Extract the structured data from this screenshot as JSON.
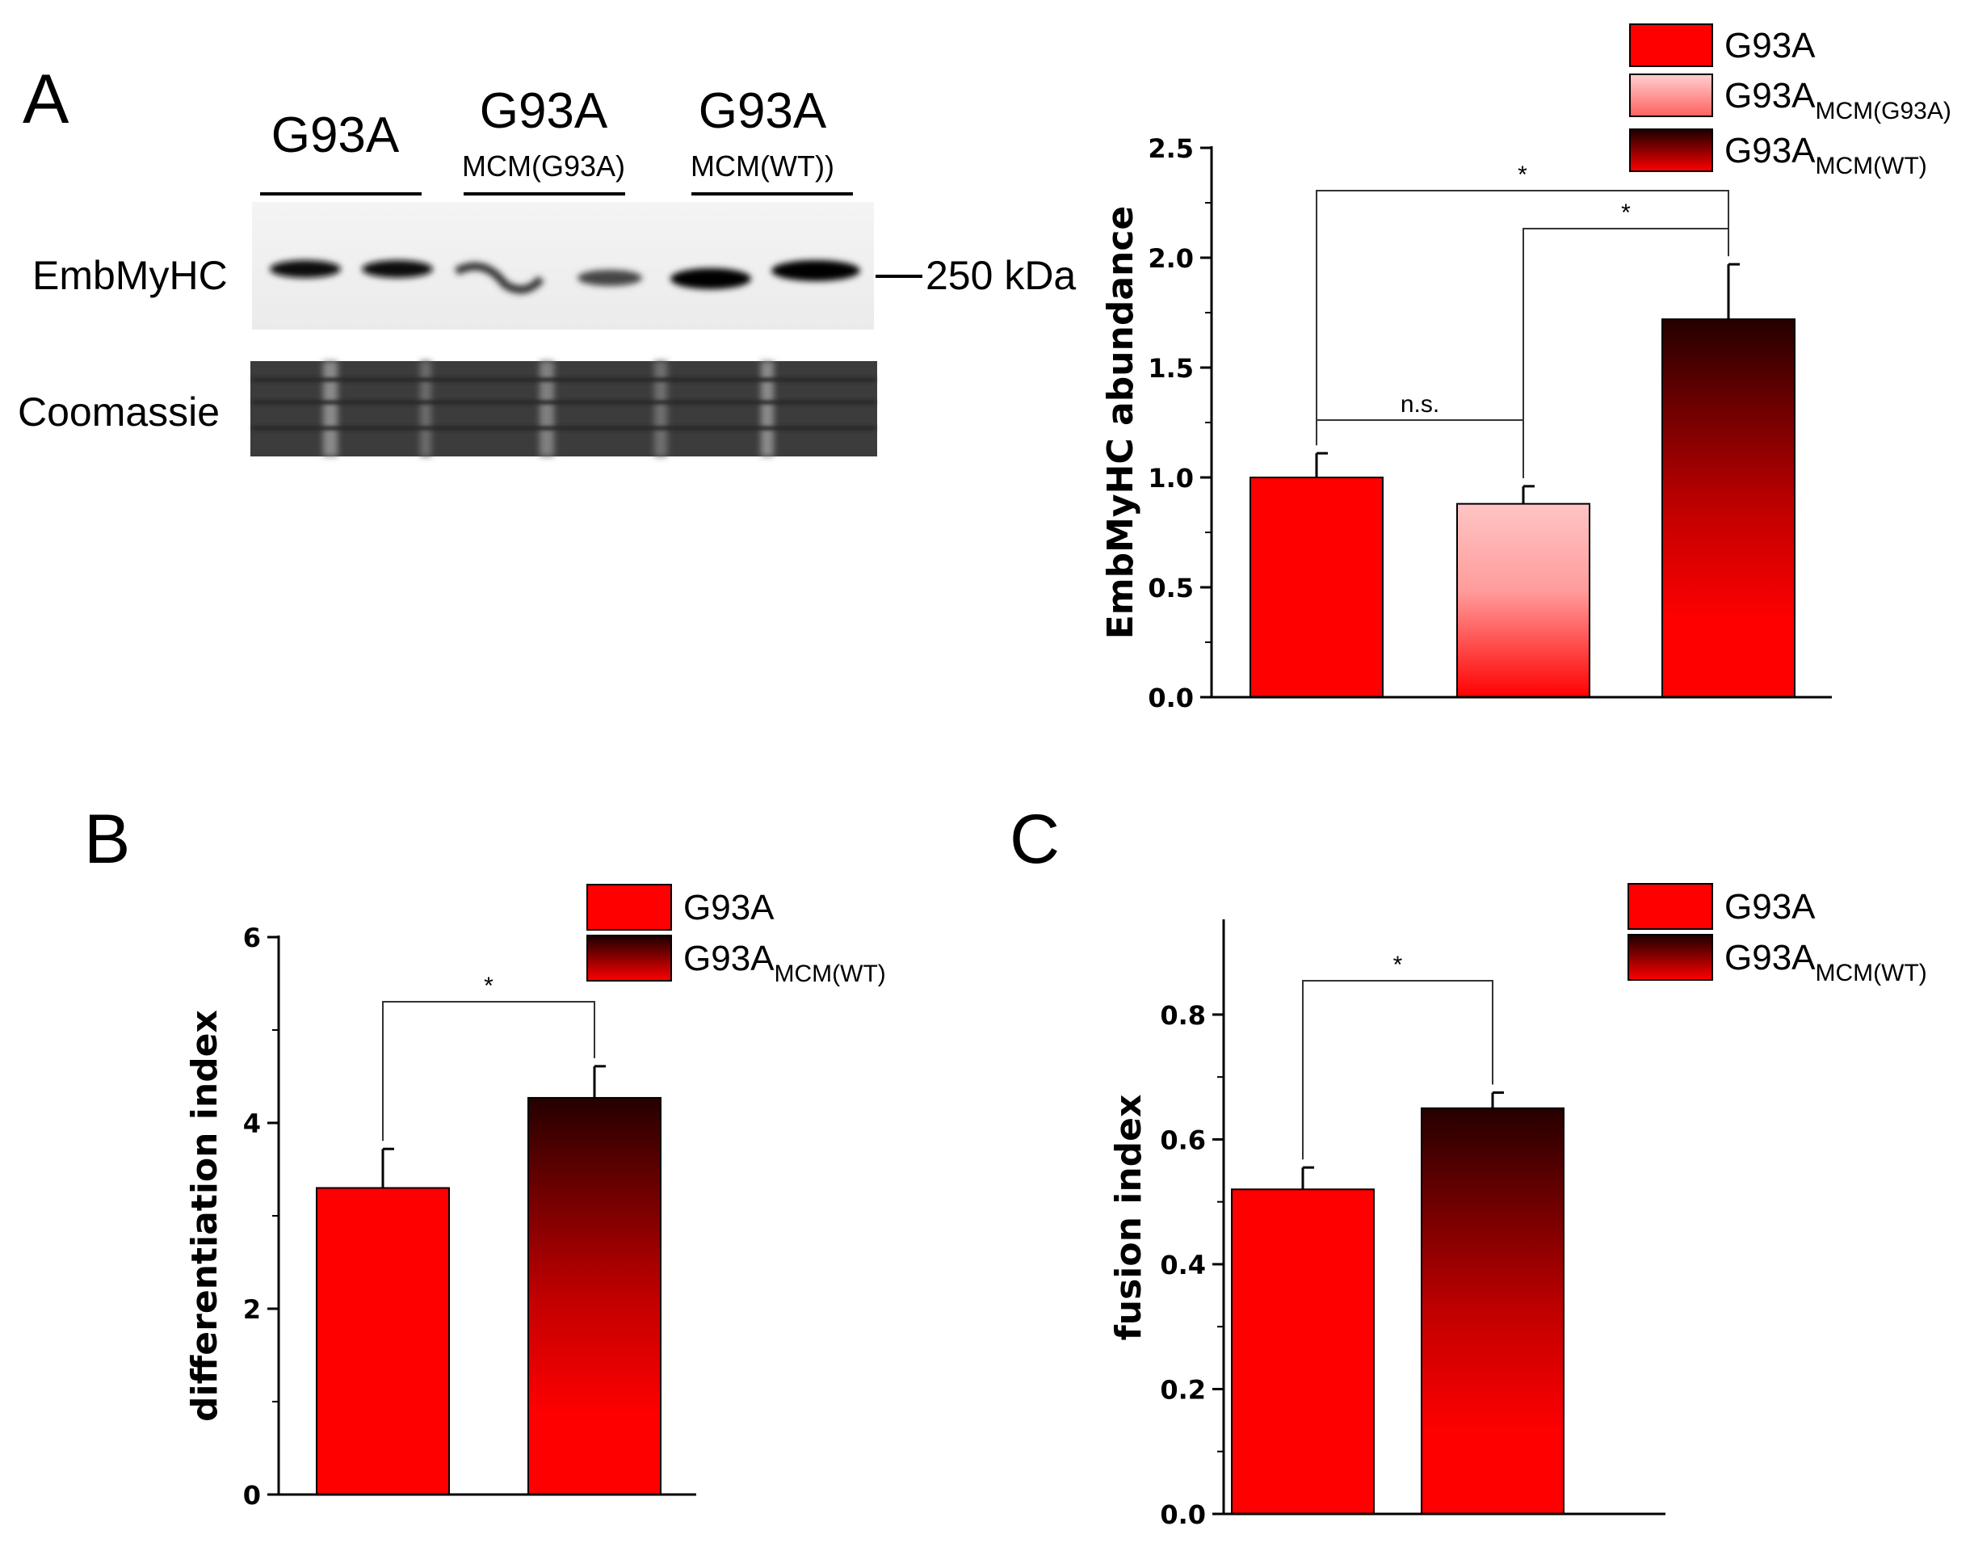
{
  "blot": {
    "panel_letter": "A",
    "lanes": [
      {
        "title": "G93A",
        "sub": ""
      },
      {
        "title": "G93A",
        "sub": "MCM(G93A)"
      },
      {
        "title": "G93A",
        "sub": "MCM(WT))"
      }
    ],
    "row_labels": [
      "EmbMyHC",
      "Coomassie"
    ],
    "marker": "250 kDa"
  },
  "colors": {
    "red": "#ff0000",
    "pink": "#ffc0c0",
    "dark": "#250000",
    "axis": "#000000"
  },
  "legend_icons": [
    "solid-red",
    "pink-gradient",
    "dark-gradient"
  ],
  "chart_data": [
    {
      "id": "A",
      "type": "bar",
      "panel_letter": "",
      "categories": [
        "G93A",
        "G93A MCM(G93A)",
        "G93A MCM(WT)"
      ],
      "values": [
        1.0,
        0.88,
        1.72
      ],
      "errors": [
        0.11,
        0.08,
        0.25
      ],
      "ylabel": "EmbMyHC abundance",
      "ylim": [
        0,
        2.5
      ],
      "yticks": [
        "0.0",
        "0.5",
        "1.0",
        "1.5",
        "2.0",
        "2.5"
      ],
      "legend": [
        {
          "main": "G93A",
          "sub": ""
        },
        {
          "main": "G93A",
          "sub": "MCM(G93A)"
        },
        {
          "main": "G93A",
          "sub": "MCM(WT)"
        }
      ],
      "significance": [
        {
          "pair": [
            0,
            2
          ],
          "label": "*"
        },
        {
          "pair": [
            1,
            2
          ],
          "label": "*"
        },
        {
          "pair": [
            0,
            1
          ],
          "label": "n.s."
        }
      ]
    },
    {
      "id": "B",
      "type": "bar",
      "panel_letter": "B",
      "categories": [
        "G93A",
        "G93A MCM(WT)"
      ],
      "values": [
        3.3,
        4.27
      ],
      "errors": [
        0.42,
        0.34
      ],
      "ylabel": "differentiation index",
      "ylim": [
        0,
        6
      ],
      "yticks": [
        "0",
        "2",
        "4",
        "6"
      ],
      "legend": [
        {
          "main": "G93A",
          "sub": ""
        },
        {
          "main": "G93A",
          "sub": "MCM(WT)"
        }
      ],
      "significance": [
        {
          "pair": [
            0,
            1
          ],
          "label": "*"
        }
      ]
    },
    {
      "id": "C",
      "type": "bar",
      "panel_letter": "C",
      "categories": [
        "G93A",
        "G93A MCM(WT)"
      ],
      "values": [
        0.52,
        0.65
      ],
      "errors": [
        0.035,
        0.025
      ],
      "ylabel": "fusion index",
      "ylim": [
        0,
        0.95
      ],
      "yticks": [
        "0.0",
        "0.2",
        "0.4",
        "0.6",
        "0.8"
      ],
      "legend": [
        {
          "main": "G93A",
          "sub": ""
        },
        {
          "main": "G93A",
          "sub": "MCM(WT)"
        }
      ],
      "significance": [
        {
          "pair": [
            0,
            1
          ],
          "label": "*"
        }
      ]
    }
  ]
}
